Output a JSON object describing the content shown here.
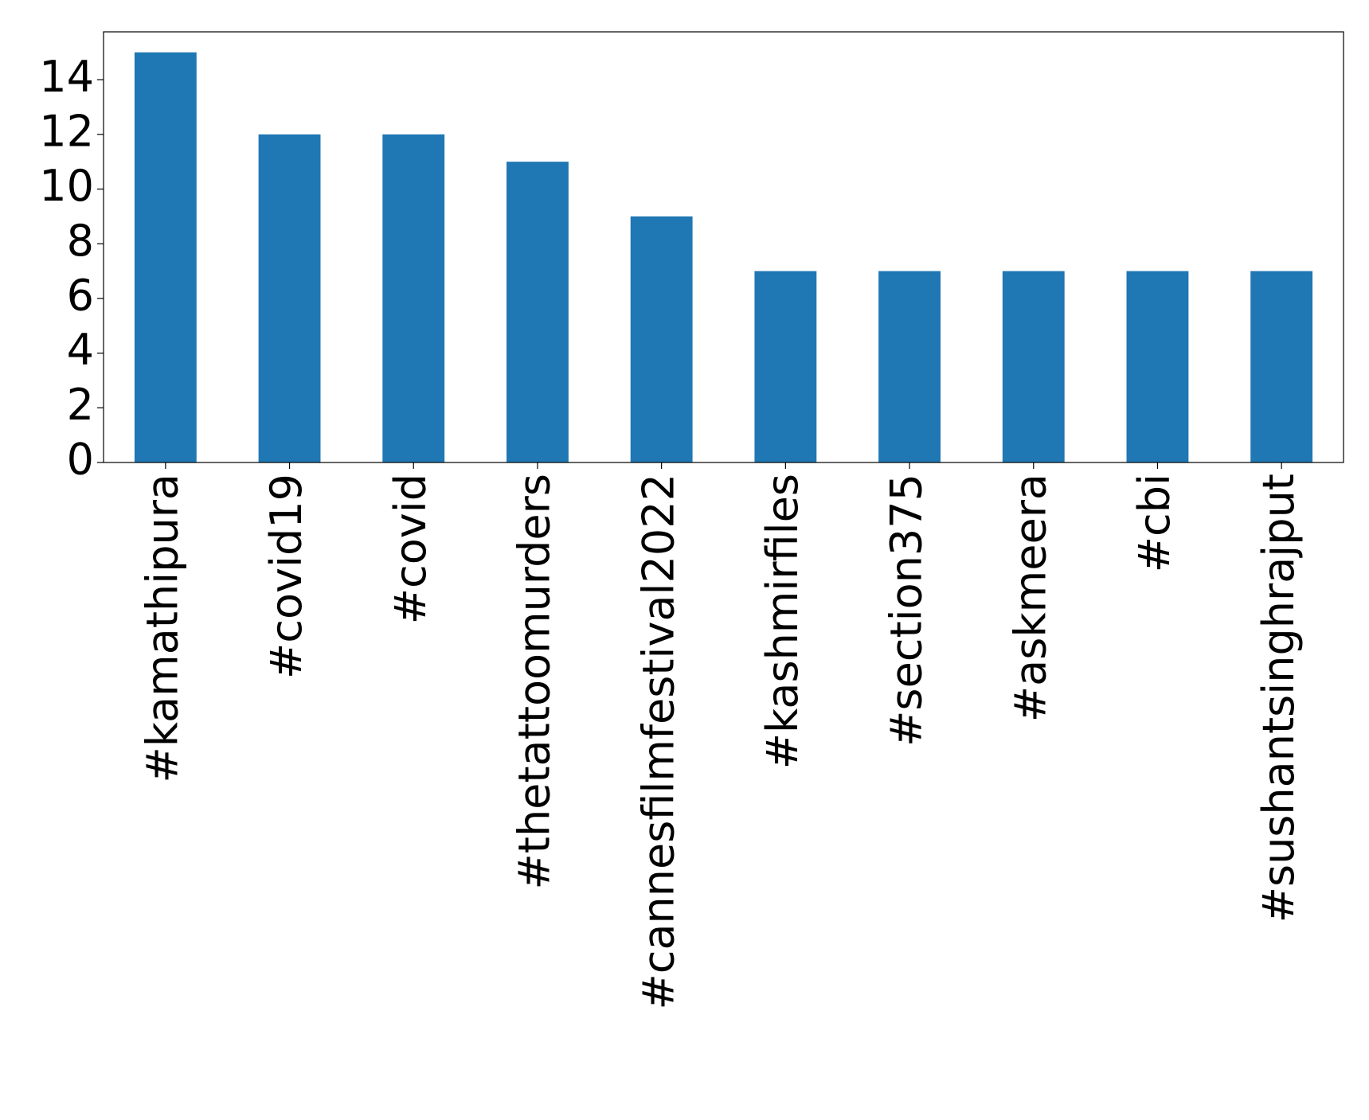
{
  "chart_data": {
    "type": "bar",
    "categories": [
      "#kamathipura",
      "#covid19",
      "#covid",
      "#thetattoomurders",
      "#cannesfilmfestival2022",
      "#kashmirfiles",
      "#section375",
      "#askmeera",
      "#cbi",
      "#sushantsinghrajput"
    ],
    "values": [
      15,
      12,
      12,
      11,
      9,
      7,
      7,
      7,
      7,
      7
    ],
    "color": "#1f77b4",
    "ylim": [
      0,
      15.75
    ],
    "yticks": [
      0,
      2,
      4,
      6,
      8,
      10,
      12,
      14
    ],
    "grid": false
  }
}
